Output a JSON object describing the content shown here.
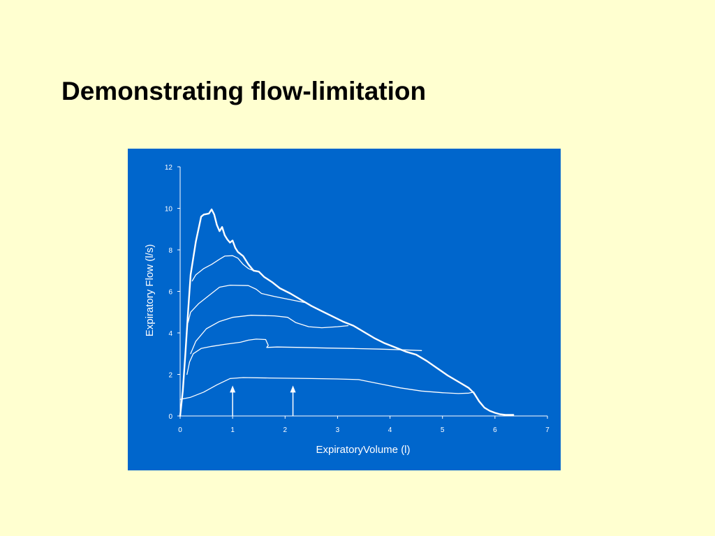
{
  "slide": {
    "title": "Demonstrating flow-limitation"
  },
  "colors": {
    "background": "#FFFFD0",
    "panel": "#0066CC",
    "ink": "#FFFFFF"
  },
  "chart_data": {
    "type": "line",
    "title": "",
    "xlabel": "ExpiratoryVolume (l)",
    "ylabel": "Expiratory Flow (l/s)",
    "xlim": [
      0,
      7
    ],
    "ylim": [
      0,
      12
    ],
    "x_ticks": [
      "0",
      "1",
      "2",
      "3",
      "4",
      "5",
      "6",
      "7"
    ],
    "y_ticks": [
      "0",
      "2",
      "4",
      "6",
      "8",
      "10",
      "12"
    ],
    "grid": false,
    "legend": "none",
    "series": [
      {
        "width": 2.4,
        "points": [
          [
            0,
            0
          ],
          [
            0.05,
            1.2
          ],
          [
            0.1,
            3
          ],
          [
            0.15,
            5
          ],
          [
            0.2,
            6.8
          ],
          [
            0.3,
            8.4
          ],
          [
            0.4,
            9.6
          ],
          [
            0.45,
            9.7
          ],
          [
            0.55,
            9.75
          ],
          [
            0.6,
            9.95
          ],
          [
            0.65,
            9.7
          ],
          [
            0.7,
            9.2
          ],
          [
            0.75,
            8.9
          ],
          [
            0.8,
            9.1
          ],
          [
            0.85,
            8.7
          ],
          [
            0.9,
            8.5
          ],
          [
            0.95,
            8.35
          ],
          [
            1.0,
            8.45
          ],
          [
            1.05,
            8.1
          ],
          [
            1.1,
            7.9
          ],
          [
            1.15,
            7.8
          ],
          [
            1.2,
            7.7
          ],
          [
            1.3,
            7.3
          ],
          [
            1.4,
            7.0
          ],
          [
            1.5,
            6.95
          ],
          [
            1.6,
            6.7
          ],
          [
            1.75,
            6.45
          ],
          [
            1.9,
            6.15
          ],
          [
            2.1,
            5.9
          ],
          [
            2.3,
            5.6
          ],
          [
            2.5,
            5.3
          ],
          [
            2.7,
            5.05
          ],
          [
            2.9,
            4.8
          ],
          [
            3.1,
            4.55
          ],
          [
            3.3,
            4.35
          ],
          [
            3.5,
            4.05
          ],
          [
            3.7,
            3.75
          ],
          [
            3.9,
            3.5
          ],
          [
            4.1,
            3.3
          ],
          [
            4.3,
            3.1
          ],
          [
            4.5,
            2.95
          ],
          [
            4.7,
            2.65
          ],
          [
            4.9,
            2.3
          ],
          [
            5.1,
            1.95
          ],
          [
            5.3,
            1.65
          ],
          [
            5.5,
            1.35
          ],
          [
            5.6,
            1.1
          ],
          [
            5.7,
            0.7
          ],
          [
            5.8,
            0.4
          ],
          [
            5.9,
            0.25
          ],
          [
            6.0,
            0.15
          ],
          [
            6.1,
            0.08
          ],
          [
            6.2,
            0.05
          ],
          [
            6.3,
            0.05
          ],
          [
            6.35,
            0.05
          ]
        ]
      },
      {
        "width": 1.3,
        "points": [
          [
            0.23,
            6.5
          ],
          [
            0.3,
            6.8
          ],
          [
            0.45,
            7.1
          ],
          [
            0.6,
            7.3
          ],
          [
            0.75,
            7.55
          ],
          [
            0.85,
            7.7
          ],
          [
            1.0,
            7.72
          ],
          [
            1.1,
            7.6
          ],
          [
            1.2,
            7.3
          ],
          [
            1.3,
            7.1
          ],
          [
            1.4,
            7.0
          ]
        ]
      },
      {
        "width": 1.3,
        "points": [
          [
            0.15,
            4.5
          ],
          [
            0.2,
            5.0
          ],
          [
            0.35,
            5.4
          ],
          [
            0.55,
            5.8
          ],
          [
            0.75,
            6.2
          ],
          [
            0.95,
            6.3
          ],
          [
            1.3,
            6.28
          ],
          [
            1.45,
            6.1
          ],
          [
            1.55,
            5.9
          ],
          [
            1.8,
            5.75
          ],
          [
            2.1,
            5.6
          ],
          [
            2.4,
            5.45
          ]
        ]
      },
      {
        "width": 1.3,
        "points": [
          [
            0.2,
            3.0
          ],
          [
            0.3,
            3.6
          ],
          [
            0.5,
            4.2
          ],
          [
            0.75,
            4.55
          ],
          [
            1.0,
            4.75
          ],
          [
            1.35,
            4.85
          ],
          [
            1.8,
            4.82
          ],
          [
            2.05,
            4.75
          ],
          [
            2.2,
            4.5
          ],
          [
            2.45,
            4.3
          ],
          [
            2.7,
            4.25
          ],
          [
            3.0,
            4.3
          ],
          [
            3.2,
            4.35
          ]
        ]
      },
      {
        "width": 1.3,
        "points": [
          [
            0.13,
            2.0
          ],
          [
            0.18,
            2.6
          ],
          [
            0.25,
            3.0
          ],
          [
            0.4,
            3.25
          ],
          [
            0.6,
            3.35
          ],
          [
            0.85,
            3.45
          ],
          [
            1.15,
            3.55
          ],
          [
            1.3,
            3.65
          ],
          [
            1.45,
            3.7
          ],
          [
            1.63,
            3.68
          ],
          [
            1.68,
            3.4
          ],
          [
            1.65,
            3.3
          ],
          [
            1.85,
            3.32
          ],
          [
            2.3,
            3.3
          ],
          [
            2.8,
            3.27
          ],
          [
            3.3,
            3.25
          ],
          [
            3.8,
            3.22
          ],
          [
            4.3,
            3.18
          ],
          [
            4.6,
            3.15
          ]
        ]
      },
      {
        "width": 1.3,
        "points": [
          [
            0,
            0.8
          ],
          [
            0.2,
            0.9
          ],
          [
            0.45,
            1.15
          ],
          [
            0.7,
            1.5
          ],
          [
            0.95,
            1.8
          ],
          [
            1.2,
            1.85
          ],
          [
            1.7,
            1.83
          ],
          [
            2.5,
            1.8
          ],
          [
            3.0,
            1.78
          ],
          [
            3.4,
            1.75
          ],
          [
            3.8,
            1.55
          ],
          [
            4.2,
            1.35
          ],
          [
            4.6,
            1.2
          ],
          [
            5.0,
            1.12
          ],
          [
            5.3,
            1.08
          ],
          [
            5.5,
            1.1
          ],
          [
            5.6,
            1.15
          ]
        ]
      }
    ],
    "annotations": [
      {
        "type": "arrow",
        "x": 1.0,
        "y_from": 0,
        "y_to": 1.4
      },
      {
        "type": "arrow",
        "x": 2.15,
        "y_from": 0,
        "y_to": 1.4
      }
    ]
  }
}
